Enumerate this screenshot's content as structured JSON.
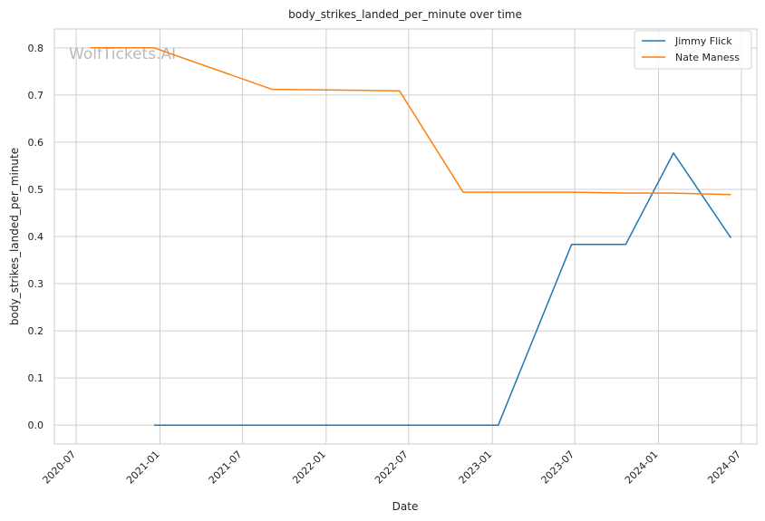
{
  "chart_data": {
    "type": "line",
    "title": "body_strikes_landed_per_minute over time",
    "xlabel": "Date",
    "ylabel": "body_strikes_landed_per_minute",
    "watermark": "WolfTickets.AI",
    "grid": true,
    "legend_position": "top-right",
    "xlim": [
      "2020-05-14",
      "2024-08-04"
    ],
    "ylim": [
      -0.04,
      0.84
    ],
    "x_ticks": [
      "2020-07",
      "2021-01",
      "2021-07",
      "2022-01",
      "2022-07",
      "2023-01",
      "2023-07",
      "2024-01",
      "2024-07"
    ],
    "y_ticks": [
      "0.0",
      "0.1",
      "0.2",
      "0.3",
      "0.4",
      "0.5",
      "0.6",
      "0.7",
      "0.8"
    ],
    "series": [
      {
        "name": "Jimmy Flick",
        "color": "#1f77b4",
        "points": [
          {
            "x": "2020-12-19",
            "y": 0.0
          },
          {
            "x": "2023-01-14",
            "y": 0.0
          },
          {
            "x": "2023-06-24",
            "y": 0.383
          },
          {
            "x": "2023-10-21",
            "y": 0.383
          },
          {
            "x": "2024-02-03",
            "y": 0.577
          },
          {
            "x": "2024-06-08",
            "y": 0.397
          }
        ]
      },
      {
        "name": "Nate Maness",
        "color": "#ff7f0e",
        "points": [
          {
            "x": "2020-08-01",
            "y": 0.8
          },
          {
            "x": "2020-12-19",
            "y": 0.8
          },
          {
            "x": "2021-09-04",
            "y": 0.712
          },
          {
            "x": "2022-06-11",
            "y": 0.709
          },
          {
            "x": "2022-10-29",
            "y": 0.494
          },
          {
            "x": "2023-06-24",
            "y": 0.494
          },
          {
            "x": "2023-10-21",
            "y": 0.492
          },
          {
            "x": "2024-02-03",
            "y": 0.492
          },
          {
            "x": "2024-06-08",
            "y": 0.489
          }
        ]
      }
    ]
  }
}
